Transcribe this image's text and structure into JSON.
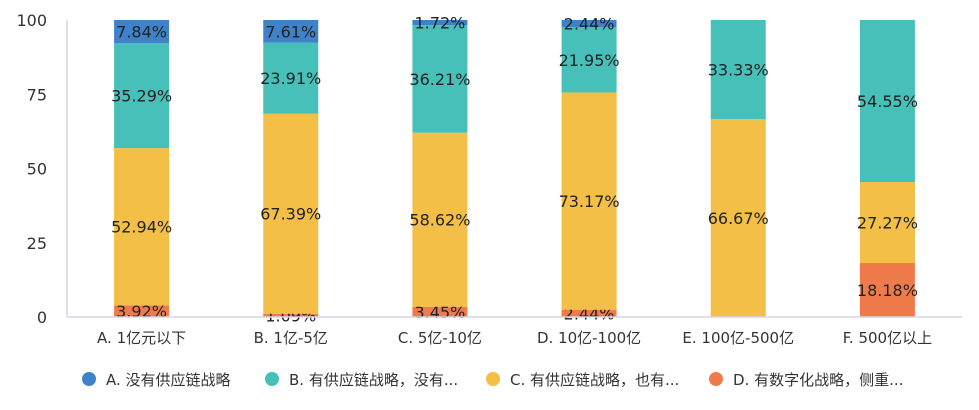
{
  "chart_data": {
    "type": "bar",
    "stacked": true,
    "categories": [
      "A. 1亿元以下",
      "B. 1亿-5亿",
      "C. 5亿-10亿",
      "D. 10亿-100亿",
      "E. 100亿-500亿",
      "F. 500亿以上"
    ],
    "series": [
      {
        "name": "D. 有数字化战略，侧重...",
        "color": "#ef7b4b",
        "values": [
          3.92,
          1.09,
          3.45,
          2.44,
          0,
          18.18
        ]
      },
      {
        "name": "C. 有供应链战略，也有...",
        "color": "#f3bf46",
        "values": [
          52.94,
          67.39,
          58.62,
          73.17,
          66.67,
          27.27
        ]
      },
      {
        "name": "B. 有供应链战略，没有...",
        "color": "#46c0b8",
        "values": [
          35.29,
          23.91,
          36.21,
          21.95,
          33.33,
          54.55
        ]
      },
      {
        "name": "A. 没有供应链战略",
        "color": "#3f82c9",
        "values": [
          7.84,
          7.61,
          1.72,
          2.44,
          0,
          0
        ]
      }
    ],
    "legend_order": [
      3,
      2,
      1,
      0
    ],
    "yticks": [
      0,
      25,
      50,
      75,
      100
    ],
    "ylim": [
      0,
      100
    ],
    "legend_position": "bottom",
    "title": "",
    "xlabel": "",
    "ylabel": ""
  }
}
